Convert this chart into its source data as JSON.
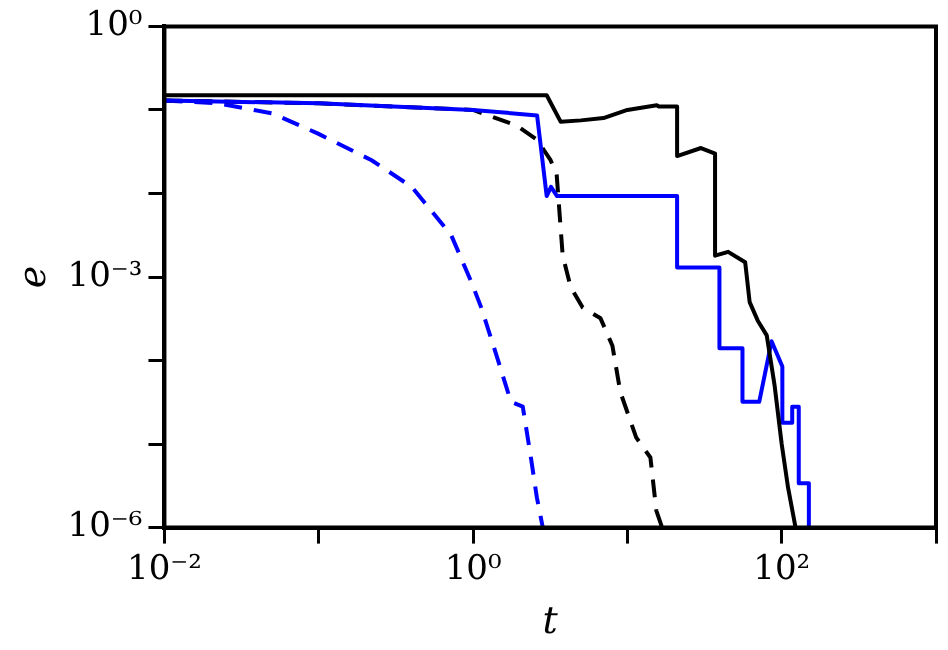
{
  "chart_data": {
    "type": "line",
    "xlabel": "t",
    "ylabel": "e",
    "log": "xy",
    "grid": false,
    "legend": false,
    "marker": "none",
    "xlim": [
      0.01,
      1000
    ],
    "ylim": [
      1e-06,
      1
    ],
    "xticks": [
      {
        "value": 0.01,
        "label": "10⁻²"
      },
      {
        "value": 0.1,
        "label": null
      },
      {
        "value": 1,
        "label": "10⁰"
      },
      {
        "value": 10,
        "label": null
      },
      {
        "value": 100,
        "label": "10²"
      },
      {
        "value": 1000,
        "label": null
      }
    ],
    "yticks": [
      {
        "value": 1e-06,
        "label": "10⁻⁶"
      },
      {
        "value": 1e-05,
        "label": null
      },
      {
        "value": 0.0001,
        "label": null
      },
      {
        "value": 0.001,
        "label": "10⁻³"
      },
      {
        "value": 0.01,
        "label": null
      },
      {
        "value": 0.1,
        "label": null
      },
      {
        "value": 1,
        "label": "10⁰"
      }
    ],
    "series": [
      {
        "color": "#000000",
        "line_style": "solid",
        "x": [
          0.01,
          3.0,
          3.7,
          5,
          7,
          10,
          15.5,
          16,
          21,
          21,
          30,
          37,
          37,
          45,
          58,
          62,
          70,
          80,
          90,
          100,
          110,
          123
        ],
        "values": [
          0.15,
          0.15,
          0.072,
          0.075,
          0.08,
          0.1,
          0.114,
          0.11,
          0.11,
          0.028,
          0.035,
          0.03,
          0.0018,
          0.002,
          0.0015,
          0.0005,
          0.0003,
          0.0002,
          5e-05,
          1e-05,
          3e-06,
          1e-06
        ]
      },
      {
        "color": "#0000ff",
        "line_style": "solid",
        "x": [
          0.01,
          0.1,
          1,
          2.6,
          3.0,
          3.2,
          3.5,
          21,
          21,
          39.5,
          39.5,
          55.7,
          55.7,
          71.5,
          86,
          101,
          101,
          117,
          117,
          129,
          129,
          150,
          150
        ],
        "values": [
          0.13,
          0.12,
          0.1,
          0.086,
          0.0093,
          0.012,
          0.0093,
          0.0093,
          0.0013,
          0.0013,
          0.00014,
          0.00014,
          3.2e-05,
          3.2e-05,
          0.00017,
          8.5e-05,
          1.8e-05,
          1.8e-05,
          2.8e-05,
          2.8e-05,
          3.4e-06,
          3.4e-06,
          1e-06
        ]
      },
      {
        "color": "#000000",
        "line_style": "dashed",
        "x": [
          0.01,
          0.1,
          1,
          1.92,
          2.59,
          3.18,
          3.48,
          3.81,
          4.29,
          5.13,
          6.7,
          8.0,
          9.0,
          11.4,
          14.1,
          15.4,
          16.8
        ],
        "values": [
          0.13,
          0.12,
          0.1,
          0.065,
          0.044,
          0.025,
          0.017,
          0.0018,
          0.00076,
          0.00043,
          0.00032,
          0.00015,
          4.2e-05,
          1.2e-05,
          6.9e-06,
          1.6e-06,
          1e-06
        ]
      },
      {
        "color": "#0000ff",
        "line_style": "dashed",
        "x": [
          0.01,
          0.022,
          0.05,
          0.099,
          0.22,
          0.4,
          0.72,
          0.97,
          1.13,
          1.43,
          1.76,
          2.1,
          2.37,
          2.59,
          2.83
        ],
        "values": [
          0.13,
          0.12,
          0.091,
          0.052,
          0.025,
          0.012,
          0.0032,
          0.00089,
          0.00043,
          0.00011,
          3.2e-05,
          2.8e-05,
          6.9e-06,
          2.3e-06,
          1e-06
        ]
      }
    ]
  }
}
